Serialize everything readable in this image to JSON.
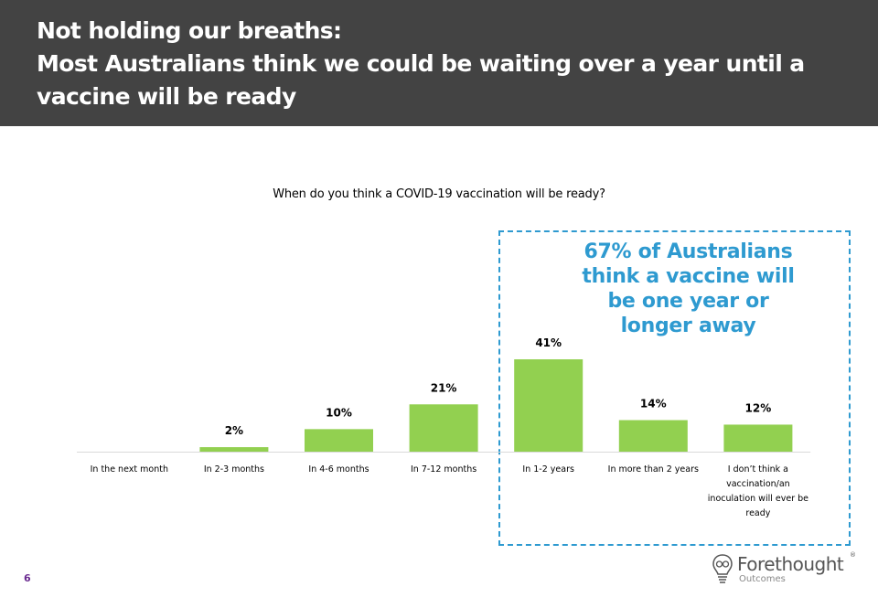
{
  "header": {
    "title_lines": [
      "Not holding our breaths:",
      "Most Australians think we could be waiting over a year until a",
      "vaccine will be ready"
    ]
  },
  "callout": {
    "lines": [
      "67% of Australians",
      "think a vaccine will",
      "be one year or",
      "longer away"
    ]
  },
  "footer": {
    "page_number": "6",
    "logo_text": "Forethought",
    "logo_registered": "®",
    "logo_subtext": "Outcomes"
  },
  "colors": {
    "header_bg": "#434343",
    "bar": "#92d050",
    "callout": "#2e9ad0",
    "page_number": "#6b2c91"
  },
  "chart_data": {
    "type": "bar",
    "title": "When do you think a COVID-19 vaccination will be ready?",
    "categories": [
      [
        "In the next month"
      ],
      [
        "In 2-3 months"
      ],
      [
        "In 4-6 months"
      ],
      [
        "In 7-12 months"
      ],
      [
        "In 1-2 years"
      ],
      [
        "In more than 2 years"
      ],
      [
        "I don’t think a",
        "vaccination/an",
        "inoculation will ever be",
        "ready"
      ]
    ],
    "values": [
      0,
      2,
      10,
      21,
      41,
      14,
      12
    ],
    "value_labels": [
      "",
      "2%",
      "10%",
      "21%",
      "41%",
      "14%",
      "12%"
    ],
    "ylim": [
      0,
      41
    ],
    "grid": false,
    "legend": "none"
  }
}
